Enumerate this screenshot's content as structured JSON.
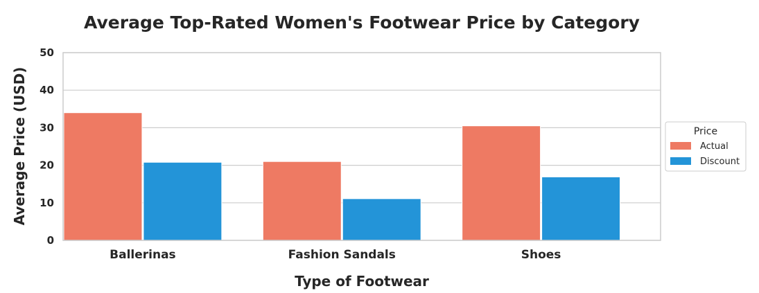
{
  "chart_data": {
    "type": "bar",
    "title": "Average Top-Rated Women's Footwear Price by Category",
    "xlabel": "Type of Footwear",
    "ylabel": "Average Price (USD)",
    "categories": [
      "Ballerinas",
      "Fashion Sandals",
      "Shoes"
    ],
    "series": [
      {
        "name": "Actual",
        "values": [
          34.0,
          21.0,
          30.5
        ],
        "color": "#ee7a63"
      },
      {
        "name": "Discount",
        "values": [
          20.8,
          11.1,
          16.9
        ],
        "color": "#2394d8"
      }
    ],
    "ylim": [
      0,
      50
    ],
    "yticks": [
      0,
      10,
      20,
      30,
      40,
      50
    ],
    "grid": true,
    "legend": {
      "title": "Price",
      "position": "right"
    }
  }
}
